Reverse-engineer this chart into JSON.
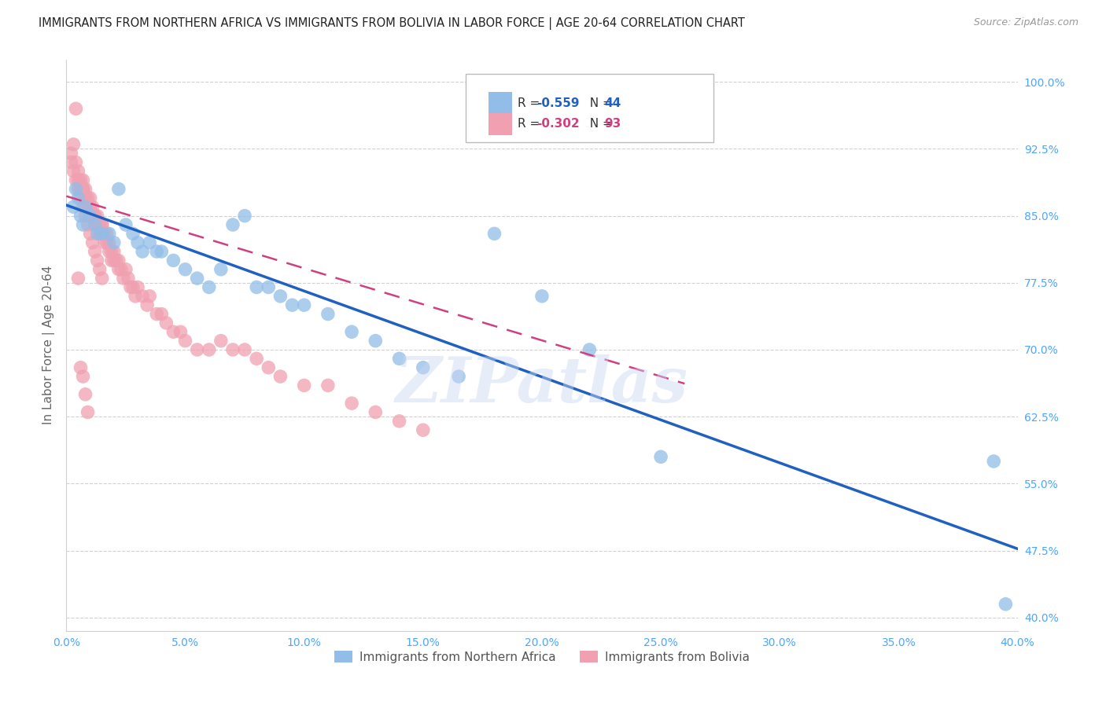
{
  "title": "IMMIGRANTS FROM NORTHERN AFRICA VS IMMIGRANTS FROM BOLIVIA IN LABOR FORCE | AGE 20-64 CORRELATION CHART",
  "source": "Source: ZipAtlas.com",
  "ylabel": "In Labor Force | Age 20-64",
  "xlim": [
    0.0,
    0.4
  ],
  "ylim": [
    0.385,
    1.025
  ],
  "yticks": [
    0.4,
    0.475,
    0.55,
    0.625,
    0.7,
    0.775,
    0.85,
    0.925,
    1.0
  ],
  "ytick_labels": [
    "40.0%",
    "47.5%",
    "55.0%",
    "62.5%",
    "70.0%",
    "77.5%",
    "85.0%",
    "92.5%",
    "100.0%"
  ],
  "xticks": [
    0.0,
    0.05,
    0.1,
    0.15,
    0.2,
    0.25,
    0.3,
    0.35,
    0.4
  ],
  "xtick_labels": [
    "0.0%",
    "5.0%",
    "10.0%",
    "15.0%",
    "20.0%",
    "25.0%",
    "30.0%",
    "35.0%",
    "40.0%"
  ],
  "blue_color": "#92bde8",
  "pink_color": "#f0a0b0",
  "blue_line_color": "#2060c0",
  "pink_line_color": "#d04080",
  "legend_label_blue": "Immigrants from Northern Africa",
  "legend_label_pink": "Immigrants from Bolivia",
  "watermark": "ZIPatlas",
  "blue_scatter_x": [
    0.003,
    0.004,
    0.005,
    0.006,
    0.007,
    0.008,
    0.01,
    0.012,
    0.013,
    0.015,
    0.018,
    0.02,
    0.022,
    0.025,
    0.028,
    0.03,
    0.032,
    0.035,
    0.038,
    0.04,
    0.045,
    0.05,
    0.055,
    0.06,
    0.065,
    0.07,
    0.075,
    0.08,
    0.085,
    0.09,
    0.095,
    0.1,
    0.11,
    0.12,
    0.13,
    0.14,
    0.15,
    0.165,
    0.18,
    0.2,
    0.22,
    0.25,
    0.39,
    0.395
  ],
  "blue_scatter_y": [
    0.86,
    0.88,
    0.87,
    0.85,
    0.84,
    0.86,
    0.85,
    0.84,
    0.83,
    0.83,
    0.83,
    0.82,
    0.88,
    0.84,
    0.83,
    0.82,
    0.81,
    0.82,
    0.81,
    0.81,
    0.8,
    0.79,
    0.78,
    0.77,
    0.79,
    0.84,
    0.85,
    0.77,
    0.77,
    0.76,
    0.75,
    0.75,
    0.74,
    0.72,
    0.71,
    0.69,
    0.68,
    0.67,
    0.83,
    0.76,
    0.7,
    0.58,
    0.575,
    0.415
  ],
  "pink_scatter_x": [
    0.002,
    0.003,
    0.004,
    0.005,
    0.005,
    0.006,
    0.006,
    0.007,
    0.007,
    0.007,
    0.008,
    0.008,
    0.009,
    0.009,
    0.01,
    0.01,
    0.01,
    0.011,
    0.011,
    0.012,
    0.012,
    0.012,
    0.013,
    0.013,
    0.014,
    0.014,
    0.015,
    0.015,
    0.015,
    0.016,
    0.016,
    0.017,
    0.017,
    0.018,
    0.018,
    0.019,
    0.019,
    0.02,
    0.02,
    0.021,
    0.022,
    0.022,
    0.023,
    0.024,
    0.025,
    0.026,
    0.027,
    0.028,
    0.029,
    0.03,
    0.032,
    0.034,
    0.035,
    0.038,
    0.04,
    0.042,
    0.045,
    0.048,
    0.05,
    0.055,
    0.06,
    0.065,
    0.07,
    0.075,
    0.08,
    0.085,
    0.09,
    0.1,
    0.11,
    0.12,
    0.13,
    0.14,
    0.15,
    0.002,
    0.003,
    0.004,
    0.005,
    0.006,
    0.007,
    0.008,
    0.009,
    0.01,
    0.011,
    0.012,
    0.013,
    0.014,
    0.015,
    0.004,
    0.005,
    0.006,
    0.007,
    0.008,
    0.009
  ],
  "pink_scatter_y": [
    0.92,
    0.93,
    0.91,
    0.9,
    0.89,
    0.89,
    0.88,
    0.88,
    0.88,
    0.89,
    0.87,
    0.88,
    0.87,
    0.86,
    0.86,
    0.87,
    0.86,
    0.85,
    0.86,
    0.85,
    0.85,
    0.84,
    0.84,
    0.85,
    0.84,
    0.83,
    0.84,
    0.83,
    0.84,
    0.83,
    0.82,
    0.83,
    0.82,
    0.82,
    0.81,
    0.81,
    0.8,
    0.81,
    0.8,
    0.8,
    0.8,
    0.79,
    0.79,
    0.78,
    0.79,
    0.78,
    0.77,
    0.77,
    0.76,
    0.77,
    0.76,
    0.75,
    0.76,
    0.74,
    0.74,
    0.73,
    0.72,
    0.72,
    0.71,
    0.7,
    0.7,
    0.71,
    0.7,
    0.7,
    0.69,
    0.68,
    0.67,
    0.66,
    0.66,
    0.64,
    0.63,
    0.62,
    0.61,
    0.91,
    0.9,
    0.89,
    0.88,
    0.87,
    0.86,
    0.85,
    0.84,
    0.83,
    0.82,
    0.81,
    0.8,
    0.79,
    0.78,
    0.97,
    0.78,
    0.68,
    0.67,
    0.65,
    0.63
  ],
  "blue_trend_x": [
    0.0,
    0.4
  ],
  "blue_trend_y": [
    0.862,
    0.477
  ],
  "pink_trend_x": [
    0.0,
    0.26
  ],
  "pink_trend_y": [
    0.872,
    0.662
  ],
  "grid_color": "#d0d0d0",
  "background_color": "#ffffff",
  "tick_color": "#4da6ff",
  "axis_label_color": "#666666"
}
